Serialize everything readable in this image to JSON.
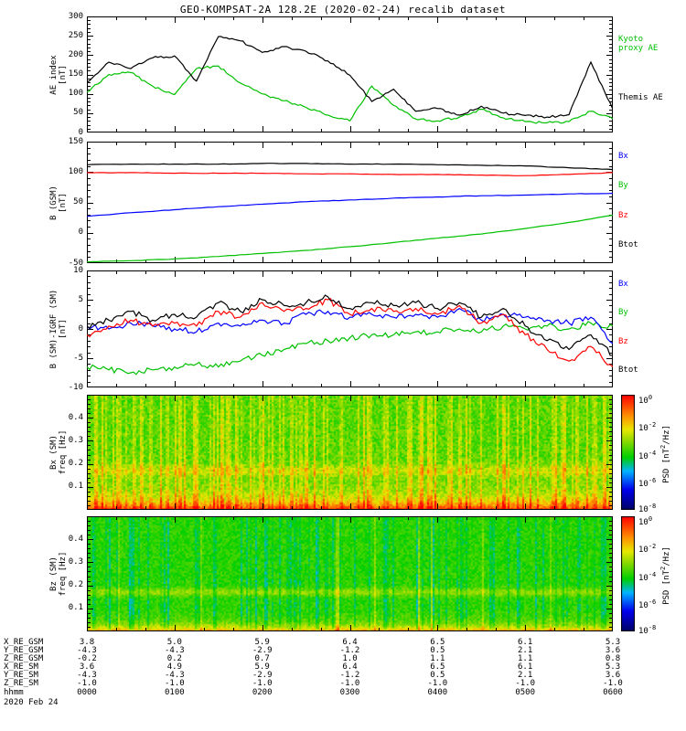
{
  "title": "GEO-KOMPSAT-2A 128.2E (2020-02-24) recalib dataset",
  "colors": {
    "green": "#00c000",
    "blue": "#0000ff",
    "red": "#ff0000",
    "black": "#000000"
  },
  "chart_data": [
    {
      "type": "line",
      "name": "AE index",
      "ylabel_lines": [
        "AE index",
        "[nT]"
      ],
      "ylim": [
        0,
        300
      ],
      "yticks": [
        0,
        50,
        100,
        150,
        200,
        250,
        300
      ],
      "ytick_labels": [
        "0",
        "50",
        "100",
        "150",
        "200",
        "250",
        "300"
      ],
      "xlim_minutes": [
        0,
        360
      ],
      "xtick_labels": [
        "0000",
        "0100",
        "0200",
        "0300",
        "0400",
        "0500",
        "0600"
      ],
      "x_minutes": [
        0,
        15,
        30,
        45,
        60,
        75,
        90,
        105,
        120,
        135,
        150,
        165,
        180,
        195,
        210,
        225,
        240,
        255,
        270,
        285,
        300,
        315,
        330,
        345,
        360
      ],
      "jitter": 3,
      "series": [
        {
          "name": "Kyoto proxy AE",
          "color": "#00c000",
          "values": [
            105,
            150,
            155,
            120,
            98,
            165,
            172,
            128,
            100,
            82,
            65,
            45,
            30,
            120,
            70,
            35,
            30,
            40,
            60,
            38,
            28,
            25,
            28,
            55,
            35
          ]
        },
        {
          "name": "Themis AE",
          "color": "#000000",
          "values": [
            130,
            182,
            165,
            193,
            198,
            133,
            248,
            237,
            207,
            222,
            210,
            185,
            148,
            80,
            112,
            55,
            62,
            45,
            68,
            50,
            44,
            40,
            46,
            182,
            60
          ]
        }
      ],
      "legend": [
        {
          "label_lines": [
            "Kyoto",
            "proxy AE"
          ],
          "color": "#00c000"
        },
        {
          "label_lines": [
            "Themis AE"
          ],
          "color": "#000000"
        }
      ]
    },
    {
      "type": "line",
      "name": "B (GSM)",
      "ylabel_lines": [
        "B (GSM)",
        "[nT]"
      ],
      "ylim": [
        -50,
        150
      ],
      "yticks": [
        -50,
        0,
        50,
        100,
        150
      ],
      "ytick_labels": [
        "-50",
        "0",
        "50",
        "100",
        "150"
      ],
      "xlim_minutes": [
        0,
        360
      ],
      "x_minutes": [
        0,
        30,
        60,
        90,
        120,
        150,
        180,
        210,
        240,
        270,
        300,
        330,
        360
      ],
      "jitter": 0.4,
      "series": [
        {
          "name": "By",
          "color": "#00c000",
          "values": [
            -48,
            -46,
            -43,
            -39,
            -34,
            -29,
            -23,
            -16,
            -9,
            -2,
            7,
            17,
            29
          ]
        },
        {
          "name": "Bx",
          "color": "#0000ff",
          "values": [
            27,
            33,
            38,
            43,
            47,
            51,
            54,
            57,
            59,
            61,
            62,
            64,
            65
          ]
        },
        {
          "name": "Bz",
          "color": "#ff0000",
          "values": [
            99,
            99,
            98,
            98,
            98,
            97,
            97,
            96,
            96,
            95,
            94,
            96,
            99
          ]
        },
        {
          "name": "Btot",
          "color": "#000000",
          "values": [
            112,
            113,
            113,
            113,
            114,
            114,
            113,
            113,
            112,
            111,
            110,
            107,
            104
          ]
        }
      ],
      "legend": [
        {
          "label_lines": [
            "Bx"
          ],
          "color": "#0000ff"
        },
        {
          "label_lines": [
            "By"
          ],
          "color": "#00c000"
        },
        {
          "label_lines": [
            "Bz"
          ],
          "color": "#ff0000"
        },
        {
          "label_lines": [
            "Btot"
          ],
          "color": "#000000"
        }
      ]
    },
    {
      "type": "line",
      "name": "B (SM)-IGRF (SM)",
      "ylabel_lines": [
        "B (SM)-IGRF (SM)",
        "[nT]"
      ],
      "ylim": [
        -10,
        10
      ],
      "yticks": [
        -10,
        -5,
        0,
        5,
        10
      ],
      "ytick_labels": [
        "-10",
        "-5",
        "0",
        "5",
        "10"
      ],
      "xlim_minutes": [
        0,
        360
      ],
      "x_minutes": [
        0,
        15,
        30,
        45,
        60,
        75,
        90,
        105,
        120,
        135,
        150,
        165,
        180,
        195,
        210,
        225,
        240,
        255,
        270,
        285,
        300,
        315,
        330,
        345,
        360
      ],
      "jitter": 0.5,
      "series": [
        {
          "name": "By",
          "color": "#00c000",
          "values": [
            -6.5,
            -7,
            -7.5,
            -7,
            -6.5,
            -6,
            -6.5,
            -5.5,
            -4.5,
            -3.5,
            -2.5,
            -2,
            -1.5,
            -1,
            -1,
            -0.5,
            -0.5,
            0,
            -0.5,
            0.5,
            0,
            0.5,
            0,
            1,
            0.5
          ]
        },
        {
          "name": "Bx",
          "color": "#0000ff",
          "values": [
            0.5,
            0,
            1,
            0.5,
            0,
            -0.5,
            1,
            0.5,
            1.5,
            1,
            2.5,
            3,
            2,
            2.5,
            2,
            2.5,
            2,
            3.5,
            1.5,
            2.5,
            2,
            1.5,
            1,
            2,
            -2.5
          ]
        },
        {
          "name": "Bz",
          "color": "#ff0000",
          "values": [
            -1,
            0.5,
            1.5,
            0.5,
            1,
            0.5,
            3,
            2,
            4.5,
            3,
            3.5,
            5,
            2.5,
            3.5,
            3,
            3.5,
            2.5,
            4,
            1,
            2.5,
            -1,
            -3.5,
            -5.5,
            -3,
            -6.5
          ]
        },
        {
          "name": "Btot",
          "color": "#000000",
          "values": [
            0.5,
            1.5,
            3,
            1.5,
            2.5,
            2,
            4.5,
            3,
            5,
            4,
            4.5,
            5.5,
            3.5,
            4.5,
            4,
            4.5,
            3.5,
            4.5,
            2,
            3.5,
            0.5,
            -2,
            -3.5,
            -1,
            -4.5
          ]
        }
      ],
      "legend": [
        {
          "label_lines": [
            "Bx"
          ],
          "color": "#0000ff"
        },
        {
          "label_lines": [
            "By"
          ],
          "color": "#00c000"
        },
        {
          "label_lines": [
            "Bz"
          ],
          "color": "#ff0000"
        },
        {
          "label_lines": [
            "Btot"
          ],
          "color": "#000000"
        }
      ]
    },
    {
      "type": "heatmap",
      "name": "Bx (SM) dynamic power spectrum",
      "ylabel_lines": [
        "Bx (SM)",
        "freq [Hz]"
      ],
      "ylim": [
        0,
        0.5
      ],
      "yticks": [
        0.1,
        0.2,
        0.3,
        0.4
      ],
      "ytick_labels": [
        "0.1",
        "0.2",
        "0.3",
        "0.4"
      ],
      "xlim_minutes": [
        0,
        360
      ],
      "colorbar": {
        "tick_base": "10",
        "tick_exponents": [
          "0",
          "-2",
          "-4",
          "-6",
          "-8"
        ],
        "label_pre": "PSD [nT",
        "label_sup": "2",
        "label_post": "/Hz]"
      },
      "model": {
        "seed": 42,
        "base": 0.55,
        "noise": 0.07,
        "stripe_prob": 0.4,
        "stripe_gain": 0.2,
        "bright_prob": 0,
        "bright_gain": 0,
        "lowfreq_gain": 0.4,
        "lowfreq_decay": 0.09,
        "band_center": 0.34,
        "band_width": 0.05,
        "band_gain": 0.1
      },
      "description": "Green background near 1e-3 nT2/Hz with vertical yellow-orange striping, strong red-orange power at lowest frequencies, weak enhanced band near 0.17 Hz"
    },
    {
      "type": "heatmap",
      "name": "Bz (SM) dynamic power spectrum",
      "ylabel_lines": [
        "Bz (SM)",
        "freq [Hz]"
      ],
      "ylim": [
        0,
        0.5
      ],
      "yticks": [
        0.1,
        0.2,
        0.3,
        0.4
      ],
      "ytick_labels": [
        "0.1",
        "0.2",
        "0.3",
        "0.4"
      ],
      "xlim_minutes": [
        0,
        360
      ],
      "colorbar": {
        "tick_base": "10",
        "tick_exponents": [
          "0",
          "-2",
          "-4",
          "-6",
          "-8"
        ],
        "label_pre": "PSD [nT",
        "label_sup": "2",
        "label_post": "/Hz]"
      },
      "model": {
        "seed": 7,
        "base": 0.5,
        "noise": 0.05,
        "stripe_prob": 0.3,
        "stripe_gain": -0.13,
        "bright_prob": 0.07,
        "bright_gain": 0.14,
        "lowfreq_gain": 0.34,
        "lowfreq_decay": 0.05,
        "band_center": 0.34,
        "band_width": 0.035,
        "band_gain": 0.11
      },
      "description": "Green background with cyan vertical streaks, thin orange power at lowest frequencies, narrow enhanced line near 0.17 Hz"
    }
  ],
  "ephemeris": {
    "rows": [
      {
        "label": "X_RE_GSM",
        "values": [
          "3.8",
          "5.0",
          "5.9",
          "6.4",
          "6.5",
          "6.1",
          "5.3"
        ]
      },
      {
        "label": "Y_RE_GSM",
        "values": [
          "-4.3",
          "-4.3",
          "-2.9",
          "-1.2",
          "0.5",
          "2.1",
          "3.6"
        ]
      },
      {
        "label": "Z_RE_GSM",
        "values": [
          "-0.2",
          "0.2",
          "0.7",
          "1.0",
          "1.1",
          "1.1",
          "0.8"
        ]
      },
      {
        "label": "X_RE_SM",
        "values": [
          "3.6",
          "4.9",
          "5.9",
          "6.4",
          "6.5",
          "6.1",
          "5.3"
        ]
      },
      {
        "label": "Y_RE_SM",
        "values": [
          "-4.3",
          "-4.3",
          "-2.9",
          "-1.2",
          "0.5",
          "2.1",
          "3.6"
        ]
      },
      {
        "label": "Z_RE_SM",
        "values": [
          "-1.0",
          "-1.0",
          "-1.0",
          "-1.0",
          "-1.0",
          "-1.0",
          "-1.0"
        ]
      }
    ],
    "time_row": {
      "label": "hhmm",
      "values": [
        "0000",
        "0100",
        "0200",
        "0300",
        "0400",
        "0500",
        "0600"
      ]
    },
    "date_label": "2020 Feb 24"
  }
}
